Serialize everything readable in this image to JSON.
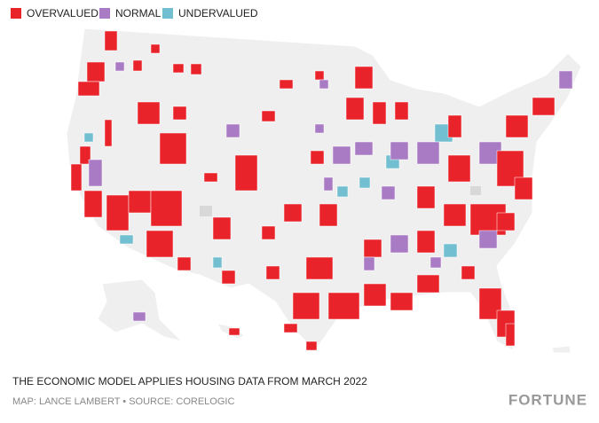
{
  "legend": {
    "items": [
      {
        "label": "OVERVALUED",
        "color": "#e8232a"
      },
      {
        "label": "NORMAL",
        "color": "#a97bc4"
      },
      {
        "label": "UNDERVALUED",
        "color": "#72bfd1"
      }
    ]
  },
  "note": "THE ECONOMIC MODEL APPLIES HOUSING DATA FROM MARCH 2022",
  "credit": "MAP: LANCE LAMBERT • SOURCE: CORELOGIC",
  "logo": "FORTUNE"
}
